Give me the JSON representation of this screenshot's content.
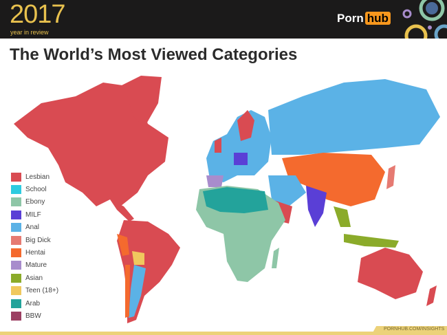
{
  "header": {
    "year": "2017",
    "subtitle": "year in review",
    "logo_text": "Porn",
    "logo_badge": "hub"
  },
  "title": "The World’s Most Viewed Categories",
  "legend": [
    {
      "label": "Lesbian",
      "color": "#d94b52"
    },
    {
      "label": "School",
      "color": "#2ecbe0"
    },
    {
      "label": "Ebony",
      "color": "#8ec6a7"
    },
    {
      "label": "MILF",
      "color": "#5a3fd6"
    },
    {
      "label": "Anal",
      "color": "#5bb2e6"
    },
    {
      "label": "Big Dick",
      "color": "#e67a72"
    },
    {
      "label": "Hentai",
      "color": "#f46a2e"
    },
    {
      "label": "Mature",
      "color": "#a88ccc"
    },
    {
      "label": "Asian",
      "color": "#8bab2a"
    },
    {
      "label": "Teen (18+)",
      "color": "#f0c85e"
    },
    {
      "label": "Arab",
      "color": "#23a39b"
    },
    {
      "label": "BBW",
      "color": "#9c3f62"
    }
  ],
  "footer": {
    "url": "PORNHUB.COM/INSIGHTS"
  }
}
